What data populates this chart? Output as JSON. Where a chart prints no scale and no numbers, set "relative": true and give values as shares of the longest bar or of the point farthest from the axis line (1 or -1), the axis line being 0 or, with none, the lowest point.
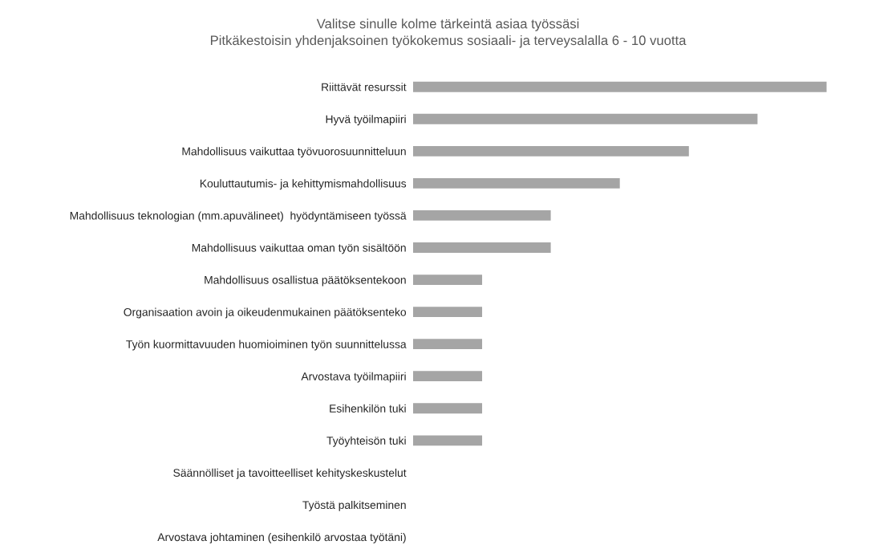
{
  "chart_data": {
    "type": "bar",
    "orientation": "horizontal",
    "relative": true,
    "title": "Valitse sinulle kolme tärkeintä asiaa työssäsi",
    "subtitle": "Pitkäkestoisin yhdenjaksoinen työkokemus sosiaali- ja terveysalalla 6 - 10 vuotta",
    "categories": [
      "Riittävät resurssit",
      "Hyvä työilmapiiri",
      "Mahdollisuus vaikuttaa työvuorosuunnitteluun",
      "Kouluttautumis- ja kehittymismahdollisuus",
      "Mahdollisuus teknologian (mm.apuvälineet)  hyödyntämiseen työssä",
      "Mahdollisuus vaikuttaa oman työn sisältöön",
      "Mahdollisuus osallistua päätöksentekoon",
      "Organisaation avoin ja oikeudenmukainen päätöksenteko",
      "Työn kuormittavuuden huomioiminen työn suunnittelussa",
      "Arvostava työilmapiiri",
      "Esihenkilön tuki",
      "Työyhteisön tuki",
      "Säännölliset ja tavoitteelliset kehityskeskustelut",
      "Työstä palkitseminen",
      "Arvostava johtaminen (esihenkilö arvostaa työtäni)"
    ],
    "values": [
      1,
      0.833,
      0.667,
      0.5,
      0.333,
      0.333,
      0.167,
      0.167,
      0.167,
      0.167,
      0.167,
      0.167,
      0,
      0,
      0
    ],
    "color": "#a5a5a5",
    "grid": false,
    "legend": false
  }
}
